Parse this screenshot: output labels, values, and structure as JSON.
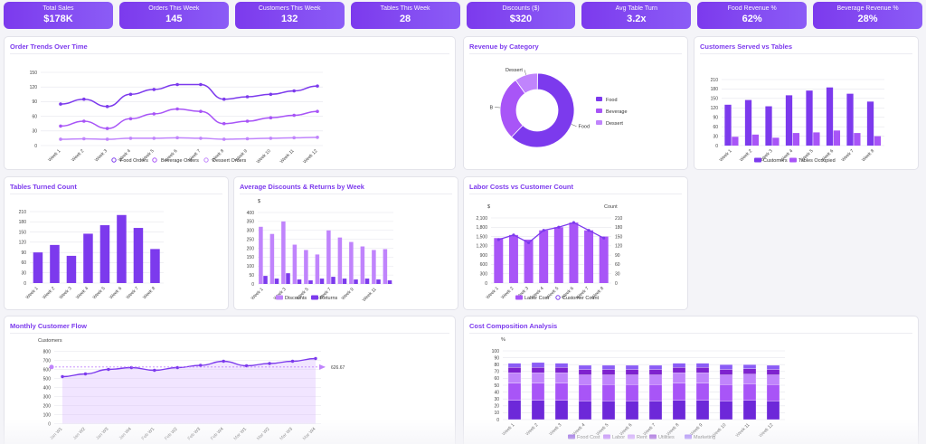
{
  "kpis": [
    {
      "label": "Total Sales",
      "value": "$178K"
    },
    {
      "label": "Orders This Week",
      "value": "145"
    },
    {
      "label": "Customers This Week",
      "value": "132"
    },
    {
      "label": "Tables This Week",
      "value": "28"
    },
    {
      "label": "Discounts ($)",
      "value": "$320"
    },
    {
      "label": "Avg Table Turn",
      "value": "3.2x"
    },
    {
      "label": "Food Revenue %",
      "value": "62%"
    },
    {
      "label": "Beverage Revenue %",
      "value": "28%"
    }
  ],
  "cards": {
    "order_trends": "Order Trends Over Time",
    "revenue_category": "Revenue by Category",
    "customers_tables": "Customers Served vs Tables",
    "tables_turned": "Tables Turned Count",
    "avg_discounts": "Average Discounts & Returns by Week",
    "labor_costs": "Labor Costs vs Customer Count",
    "monthly_flow": "Monthly Customer Flow",
    "cost_composition": "Cost Composition Analysis"
  },
  "colors": {
    "primary": "#7c3aed",
    "mid": "#a855f7",
    "light": "#c084fc",
    "pale": "#d8b4fe"
  },
  "chart_data": [
    {
      "id": "order_trends",
      "type": "line",
      "x": [
        "Week 1",
        "Week 2",
        "Week 3",
        "Week 4",
        "Week 5",
        "Week 6",
        "Week 7",
        "Week 8",
        "Week 9",
        "Week 10",
        "Week 11",
        "Week 12"
      ],
      "ylim": [
        0,
        150
      ],
      "yticks": [
        0,
        30,
        60,
        90,
        120,
        150
      ],
      "series": [
        {
          "name": "Food Orders",
          "values": [
            85,
            95,
            80,
            105,
            115,
            125,
            125,
            95,
            100,
            105,
            112,
            122
          ]
        },
        {
          "name": "Beverage Orders",
          "values": [
            40,
            50,
            35,
            55,
            65,
            75,
            70,
            45,
            50,
            57,
            62,
            70
          ]
        },
        {
          "name": "Dessert Orders",
          "values": [
            13,
            14,
            13,
            15,
            15,
            16,
            15,
            13,
            14,
            15,
            16,
            17
          ]
        }
      ]
    },
    {
      "id": "revenue_category",
      "type": "pie",
      "categories": [
        "Food",
        "Beverage",
        "Dessert"
      ],
      "values": [
        62,
        28,
        10
      ],
      "slice_labels": [
        "Food",
        "B",
        "Dessert"
      ]
    },
    {
      "id": "customers_tables",
      "type": "bar",
      "categories": [
        "Week 1",
        "Week 2",
        "Week 3",
        "Week 4",
        "Week 5",
        "Week 6",
        "Week 7",
        "Week 8"
      ],
      "ylim": [
        0,
        210
      ],
      "yticks": [
        0,
        30,
        60,
        90,
        120,
        150,
        180,
        210
      ],
      "series": [
        {
          "name": "Customers",
          "values": [
            130,
            145,
            125,
            160,
            175,
            185,
            165,
            140
          ]
        },
        {
          "name": "Tables Occupied",
          "values": [
            28,
            35,
            25,
            40,
            42,
            48,
            40,
            30
          ]
        }
      ]
    },
    {
      "id": "tables_turned",
      "type": "bar",
      "categories": [
        "Week 1",
        "Week 2",
        "Week 3",
        "Week 4",
        "Week 5",
        "Week 6",
        "Week 7",
        "Week 8"
      ],
      "ylim": [
        0,
        210
      ],
      "yticks": [
        0,
        30,
        60,
        90,
        120,
        150,
        180,
        210
      ],
      "values": [
        90,
        112,
        80,
        145,
        170,
        200,
        162,
        100
      ]
    },
    {
      "id": "avg_discounts",
      "type": "bar",
      "ylabel": "$",
      "categories": [
        "Week 1",
        "Week 2",
        "Week 3",
        "Week 4",
        "Week 5",
        "Week 6",
        "Week 7",
        "Week 8",
        "Week 9",
        "Week 10",
        "Week 11",
        "Week 12"
      ],
      "ylim": [
        0,
        400
      ],
      "yticks": [
        0,
        50,
        100,
        150,
        200,
        250,
        300,
        350,
        400
      ],
      "x_tick_labels": [
        "Week 1",
        "Week 3",
        "Week 5",
        "Week 7",
        "Week 9",
        "Week 11"
      ],
      "series": [
        {
          "name": "Discounts",
          "values": [
            320,
            280,
            350,
            220,
            190,
            165,
            300,
            260,
            235,
            210,
            190,
            195
          ]
        },
        {
          "name": "Returns",
          "values": [
            45,
            30,
            60,
            25,
            20,
            30,
            40,
            30,
            25,
            30,
            25,
            20
          ]
        }
      ]
    },
    {
      "id": "labor_costs",
      "type": "bar",
      "ylabel": "$",
      "y2label": "Count",
      "categories": [
        "Week 1",
        "Week 2",
        "Week 3",
        "Week 4",
        "Week 5",
        "Week 6",
        "Week 7",
        "Week 8"
      ],
      "ylim": [
        0,
        2100
      ],
      "yticks": [
        0,
        300,
        600,
        900,
        1200,
        1500,
        1800,
        2100
      ],
      "ytick_labels": [
        "0",
        "300",
        "600",
        "900",
        "1,200",
        "1,500",
        "1,800",
        "2,100"
      ],
      "y2lim": [
        0,
        210
      ],
      "y2ticks": [
        0,
        30,
        60,
        90,
        120,
        150,
        180,
        210
      ],
      "series": [
        {
          "name": "Labor Cost",
          "values": [
            1450,
            1550,
            1400,
            1700,
            1800,
            1950,
            1700,
            1500
          ]
        },
        {
          "name": "Customer Count",
          "values": [
            140,
            155,
            130,
            170,
            180,
            195,
            170,
            145
          ]
        }
      ]
    },
    {
      "id": "monthly_flow",
      "type": "area",
      "ylabel": "Customers",
      "x": [
        "Jan W1",
        "Jan W2",
        "Jan W3",
        "Jan W4",
        "Feb W1",
        "Feb W2",
        "Feb W3",
        "Feb W4",
        "Mar W1",
        "Mar W2",
        "Mar W3",
        "Mar W4"
      ],
      "ylim": [
        0,
        800
      ],
      "yticks": [
        0,
        100,
        200,
        300,
        400,
        500,
        600,
        700,
        800
      ],
      "values": [
        520,
        550,
        600,
        620,
        590,
        620,
        645,
        690,
        640,
        665,
        690,
        720
      ],
      "average": 626.67,
      "average_label": "626.67"
    },
    {
      "id": "cost_composition",
      "type": "bar",
      "ylabel": "%",
      "categories": [
        "Week 1",
        "Week 2",
        "Week 3",
        "Week 4",
        "Week 5",
        "Week 6",
        "Week 7",
        "Week 8",
        "Week 9",
        "Week 10",
        "Week 11",
        "Week 12"
      ],
      "ylim": [
        0,
        100
      ],
      "yticks": [
        0,
        10,
        20,
        30,
        40,
        50,
        60,
        70,
        80,
        90,
        100
      ],
      "series": [
        {
          "name": "Food Cost",
          "values": [
            28,
            28,
            28,
            27,
            27,
            27,
            27,
            28,
            28,
            27,
            28,
            27
          ]
        },
        {
          "name": "Labor",
          "values": [
            25,
            25,
            25,
            24,
            24,
            24,
            24,
            25,
            25,
            24,
            24,
            24
          ]
        },
        {
          "name": "Rent",
          "values": [
            15,
            15,
            15,
            14,
            14,
            14,
            14,
            15,
            15,
            14,
            14,
            14
          ]
        },
        {
          "name": "Utilities",
          "values": [
            8,
            8,
            8,
            8,
            8,
            8,
            8,
            8,
            8,
            8,
            8,
            8
          ]
        },
        {
          "name": "Marketing",
          "values": [
            6,
            7,
            6,
            6,
            6,
            6,
            6,
            6,
            6,
            7,
            6,
            6
          ]
        }
      ]
    }
  ]
}
